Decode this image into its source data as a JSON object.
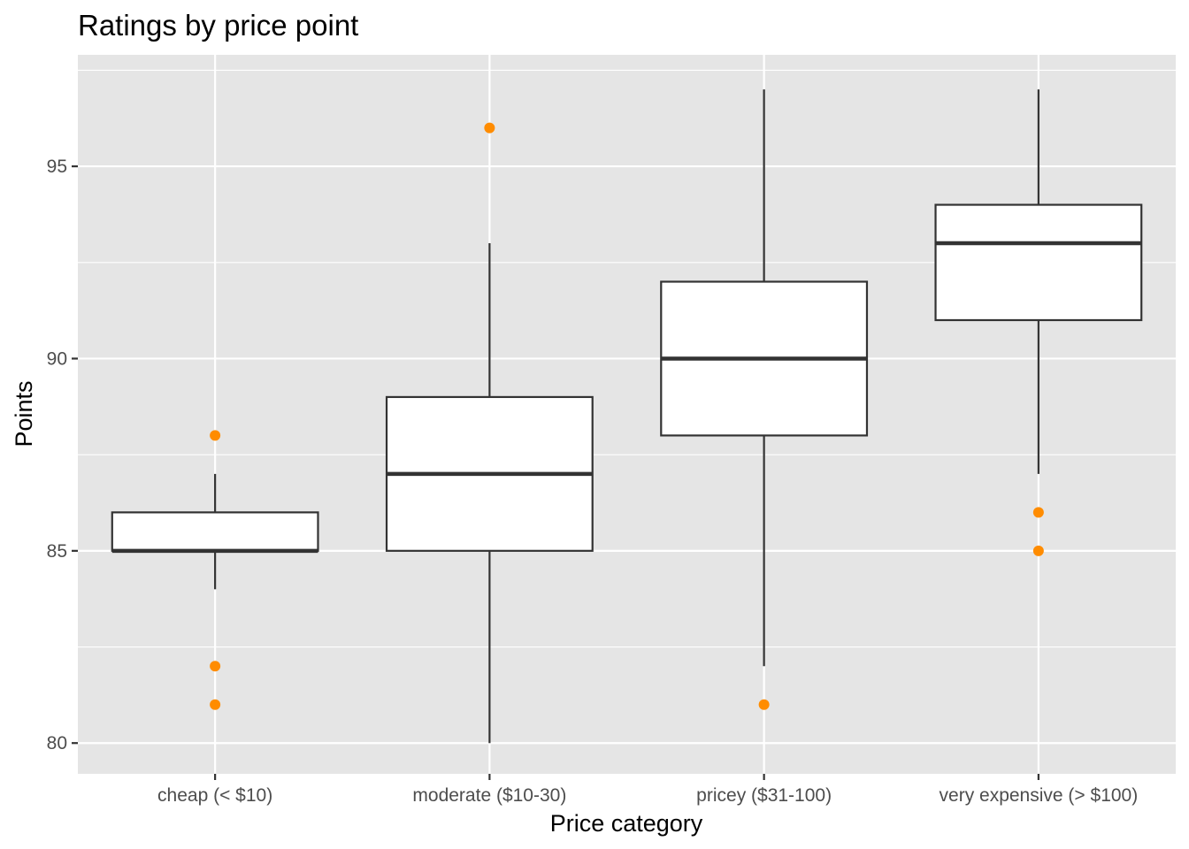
{
  "chart_data": {
    "type": "boxplot",
    "title": "Ratings by price point",
    "xlabel": "Price category",
    "ylabel": "Points",
    "ylim": [
      79.2,
      97.9
    ],
    "y_ticks": [
      80,
      85,
      90,
      95
    ],
    "grid": true,
    "legend": "none",
    "categories": [
      "cheap (< $10)",
      "moderate ($10-30)",
      "pricey ($31-100)",
      "very expensive (> $100)"
    ],
    "boxes": [
      {
        "category": "cheap (< $10)",
        "whisker_low": 84,
        "q1": 85,
        "median": 85,
        "q3": 86,
        "whisker_high": 87,
        "outliers": [
          88,
          82,
          81
        ]
      },
      {
        "category": "moderate ($10-30)",
        "whisker_low": 80,
        "q1": 85,
        "median": 87,
        "q3": 89,
        "whisker_high": 93,
        "outliers": [
          96
        ]
      },
      {
        "category": "pricey ($31-100)",
        "whisker_low": 82,
        "q1": 88,
        "median": 90,
        "q3": 92,
        "whisker_high": 97,
        "outliers": [
          81
        ]
      },
      {
        "category": "very expensive (> $100)",
        "whisker_low": 87,
        "q1": 91,
        "median": 93,
        "q3": 94,
        "whisker_high": 97,
        "outliers": [
          86,
          85
        ]
      }
    ],
    "colors": {
      "panel_background": "#e5e5e5",
      "grid": "#ffffff",
      "box_fill": "#ffffff",
      "box_line": "#333333",
      "outlier": "#ff8c00"
    }
  }
}
